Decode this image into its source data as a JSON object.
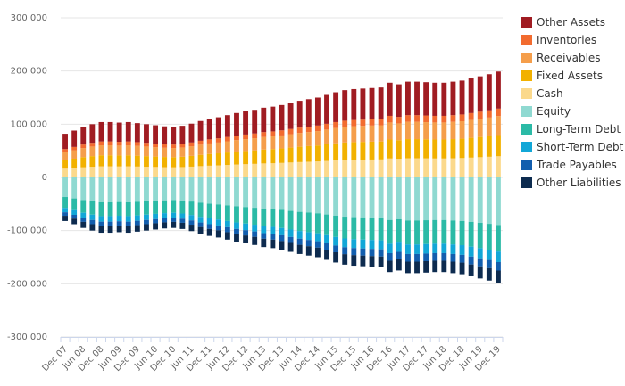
{
  "chart_data": {
    "type": "bar",
    "stacked": true,
    "title": "",
    "xlabel": "",
    "ylabel": "",
    "ylim": [
      -300000,
      300000
    ],
    "yticks": [
      300000,
      200000,
      100000,
      0,
      -100000,
      -200000,
      -300000
    ],
    "ytick_labels": [
      "300 000",
      "200 000",
      "100 000",
      "0",
      "-100 000",
      "-200 000",
      "-300 000"
    ],
    "grid": true,
    "legend_position": "right",
    "categories": [
      "Dec 07",
      "Mar 08",
      "Jun 08",
      "Sep 08",
      "Dec 08",
      "Mar 09",
      "Jun 09",
      "Sep 09",
      "Dec 09",
      "Mar 10",
      "Jun 10",
      "Sep 10",
      "Dec 10",
      "Mar 11",
      "Jun 11",
      "Sep 11",
      "Dec 11",
      "Mar 12",
      "Jun 12",
      "Sep 12",
      "Dec 12",
      "Mar 13",
      "Jun 13",
      "Sep 13",
      "Dec 13",
      "Mar 14",
      "Jun 14",
      "Sep 14",
      "Dec 14",
      "Mar 15",
      "Jun 15",
      "Sep 15",
      "Dec 15",
      "Mar 16",
      "Jun 16",
      "Sep 16",
      "Dec 16",
      "Mar 17",
      "Jun 17",
      "Sep 17",
      "Dec 17",
      "Mar 18",
      "Jun 18",
      "Sep 18",
      "Dec 18",
      "Mar 19",
      "Jun 19",
      "Sep 19",
      "Dec 19"
    ],
    "x_tick_labels": [
      "Dec 07",
      "Jun 08",
      "Dec 08",
      "Jun 09",
      "Dec 09",
      "Jun 10",
      "Dec 10",
      "Jun 11",
      "Dec 11",
      "Jun 12",
      "Dec 12",
      "Jun 13",
      "Dec 13",
      "Jun 14",
      "Dec 14",
      "Jun 15",
      "Dec 15",
      "Jun 16",
      "Dec 16",
      "Jun 17",
      "Dec 17",
      "Jun 18",
      "Dec 18",
      "Jun 19",
      "Dec 19"
    ],
    "asset_totals": [
      82000,
      88000,
      95000,
      100000,
      104000,
      104000,
      103000,
      104000,
      102000,
      100000,
      98000,
      96000,
      95000,
      97000,
      101000,
      106000,
      110000,
      113000,
      117000,
      121000,
      124000,
      127000,
      131000,
      133000,
      136000,
      140000,
      144000,
      147000,
      150000,
      155000,
      160000,
      164000,
      166000,
      167000,
      168000,
      169000,
      178000,
      175000,
      180000,
      180000,
      179000,
      178000,
      178000,
      180000,
      182000,
      186000,
      190000,
      194000,
      199000
    ],
    "liability_totals": [
      -82000,
      -88000,
      -95000,
      -100000,
      -104000,
      -104000,
      -103000,
      -104000,
      -102000,
      -100000,
      -98000,
      -96000,
      -95000,
      -97000,
      -101000,
      -106000,
      -110000,
      -113000,
      -117000,
      -121000,
      -124000,
      -127000,
      -131000,
      -133000,
      -136000,
      -140000,
      -144000,
      -147000,
      -150000,
      -155000,
      -160000,
      -164000,
      -166000,
      -167000,
      -168000,
      -169000,
      -178000,
      -175000,
      -180000,
      -180000,
      -179000,
      -178000,
      -178000,
      -180000,
      -182000,
      -186000,
      -190000,
      -194000,
      -199000
    ],
    "asset_shares": {
      "Cash": 0.2,
      "Fixed Assets": 0.2,
      "Receivables": 0.18,
      "Inventories": 0.07
    },
    "liability_shares": {
      "Equity": 0.45,
      "Long-Term Debt": 0.25,
      "Short-Term Debt": 0.1,
      "Trade Payables": 0.08
    },
    "asset_series_order": [
      "Cash",
      "Fixed Assets",
      "Receivables",
      "Inventories",
      "Other Assets"
    ],
    "liability_series_order": [
      "Equity",
      "Long-Term Debt",
      "Short-Term Debt",
      "Trade Payables",
      "Other Liabilities"
    ],
    "series": [
      {
        "name": "Other Assets",
        "color": "#a01c22"
      },
      {
        "name": "Inventories",
        "color": "#f26b2f"
      },
      {
        "name": "Receivables",
        "color": "#f59e4b"
      },
      {
        "name": "Fixed Assets",
        "color": "#f2b100"
      },
      {
        "name": "Cash",
        "color": "#fbd98c"
      },
      {
        "name": "Equity",
        "color": "#8fd9d1"
      },
      {
        "name": "Long-Term Debt",
        "color": "#2bbaa6"
      },
      {
        "name": "Short-Term Debt",
        "color": "#12a7d7"
      },
      {
        "name": "Trade Payables",
        "color": "#125eae"
      },
      {
        "name": "Other Liabilities",
        "color": "#0d2b4f"
      }
    ]
  }
}
